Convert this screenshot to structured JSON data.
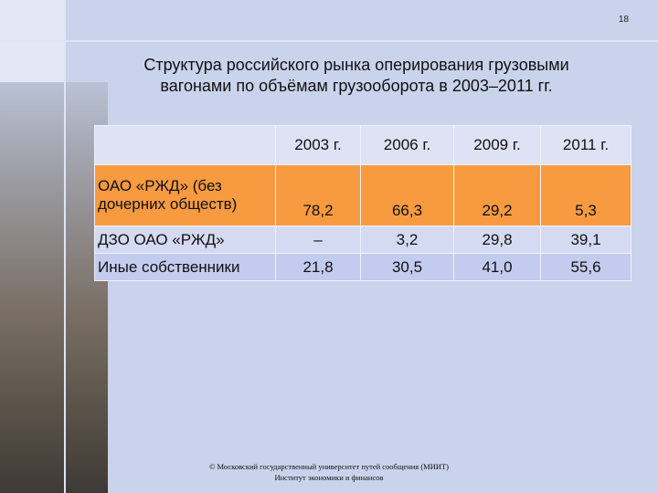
{
  "page_number": "18",
  "title": [
    "Структура российского рынка оперирования грузовыми",
    "вагонами по объёмам грузооборота в 2003–2011 гг."
  ],
  "table": {
    "header": [
      "2003 г.",
      "2006 г.",
      "2009 г.",
      "2011 г."
    ],
    "rows": [
      [
        "ОАО «РЖД» (без дочерних обществ)",
        "78,2",
        "66,3",
        "29,2",
        "5,3"
      ],
      [
        "ДЗО ОАО «РЖД»",
        "–",
        "3,2",
        "29,8",
        "39,1"
      ],
      [
        "Иные собственники",
        "21,8",
        "30,5",
        "41,0",
        "55,6"
      ]
    ]
  },
  "footer": [
    "© Московский государственный университет путей сообщения (МИИТ)",
    "Институт экономики и финансов"
  ]
}
